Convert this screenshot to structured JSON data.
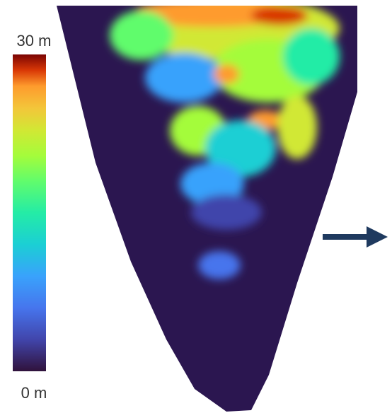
{
  "colorbar": {
    "max_label": "30 m",
    "min_label": "0 m"
  }
}
